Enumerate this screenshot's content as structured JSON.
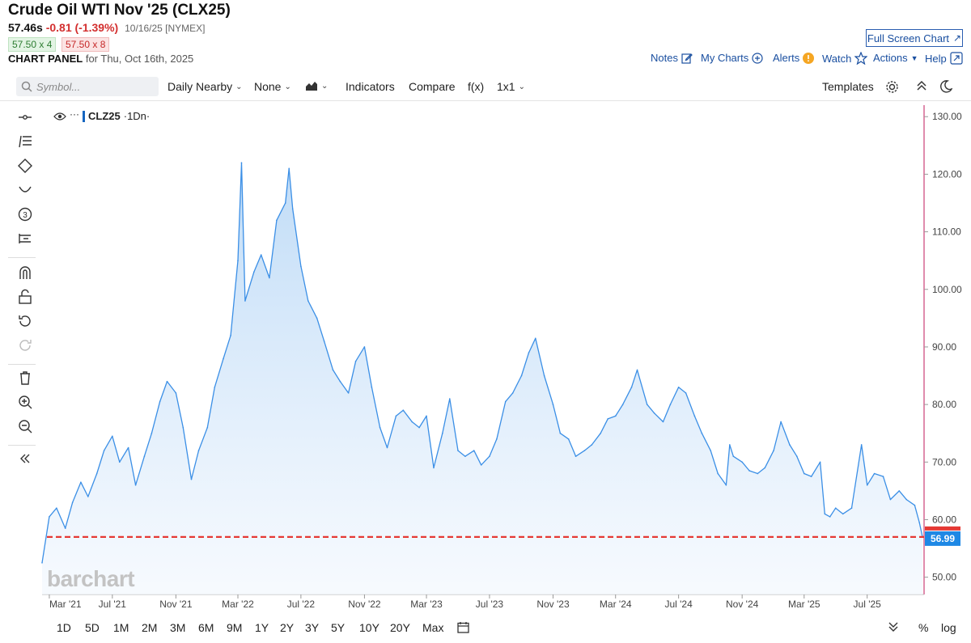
{
  "header": {
    "title": "Crude Oil WTI Nov '25 (CLX25)",
    "price": "57.46s",
    "change": "-0.81 (-1.39%)",
    "date_exchange": "10/16/25 [NYMEX]",
    "bid": "57.50 x 4",
    "ask": "57.50 x 8",
    "panel_label": "CHART PANEL",
    "panel_date": "for Thu, Oct 16th, 2025",
    "fullscreen": "Full Screen Chart",
    "links": {
      "notes": "Notes",
      "mycharts": "My Charts",
      "alerts": "Alerts",
      "watch": "Watch",
      "actions": "Actions",
      "help": "Help"
    }
  },
  "toolbar": {
    "search_placeholder": "Symbol...",
    "period": "Daily Nearby",
    "none": "None",
    "indicators": "Indicators",
    "compare": "Compare",
    "fx": "f(x)",
    "layout": "1x1",
    "templates": "Templates"
  },
  "legend": {
    "symbol": "CLZ25",
    "interval": "·1Dn·"
  },
  "watermark": "barchart",
  "bottom": {
    "ranges": [
      "1D",
      "5D",
      "1M",
      "2M",
      "3M",
      "6M",
      "9M",
      "1Y",
      "2Y",
      "3Y",
      "5Y",
      "10Y",
      "20Y",
      "Max"
    ],
    "percent": "%",
    "log": "log"
  },
  "colors": {
    "line": "#3b8fe6",
    "fill": "#dfeefc",
    "last_price": "#e53935",
    "price_tag": "#1e88e5"
  },
  "chart_data": {
    "type": "area",
    "x_labels": [
      "Mar '21",
      "Jul '21",
      "Nov '21",
      "Mar '22",
      "Jul '22",
      "Nov '22",
      "Mar '23",
      "Jul '23",
      "Nov '23",
      "Mar '24",
      "Jul '24",
      "Nov '24",
      "Mar '25",
      "Jul '25"
    ],
    "y_ticks": [
      "50.00",
      "60.00",
      "70.00",
      "80.00",
      "90.00",
      "100.00",
      "110.00",
      "120.00",
      "130.00"
    ],
    "ylim": [
      47,
      132
    ],
    "last_value": 56.99,
    "last_label": "56.99",
    "series": [
      {
        "dates": [
          "2021-02-15",
          "2021-03-01",
          "2021-03-15",
          "2021-04-01",
          "2021-04-15",
          "2021-05-01",
          "2021-05-15",
          "2021-06-01",
          "2021-06-15",
          "2021-07-01",
          "2021-07-15",
          "2021-08-01",
          "2021-08-15",
          "2021-09-01",
          "2021-09-15",
          "2021-10-01",
          "2021-10-15",
          "2021-11-01",
          "2021-11-15",
          "2021-12-01",
          "2021-12-15",
          "2022-01-01",
          "2022-01-15",
          "2022-02-01",
          "2022-02-15",
          "2022-03-01",
          "2022-03-08",
          "2022-03-15",
          "2022-04-01",
          "2022-04-15",
          "2022-05-01",
          "2022-05-15",
          "2022-06-01",
          "2022-06-08",
          "2022-06-15",
          "2022-07-01",
          "2022-07-15",
          "2022-08-01",
          "2022-08-15",
          "2022-09-01",
          "2022-09-15",
          "2022-10-01",
          "2022-10-15",
          "2022-11-01",
          "2022-11-15",
          "2022-12-01",
          "2022-12-15",
          "2023-01-01",
          "2023-01-15",
          "2023-02-01",
          "2023-02-15",
          "2023-03-01",
          "2023-03-15",
          "2023-04-01",
          "2023-04-15",
          "2023-05-01",
          "2023-05-15",
          "2023-06-01",
          "2023-06-15",
          "2023-07-01",
          "2023-07-15",
          "2023-08-01",
          "2023-08-15",
          "2023-09-01",
          "2023-09-15",
          "2023-09-28",
          "2023-10-15",
          "2023-11-01",
          "2023-11-15",
          "2023-12-01",
          "2023-12-15",
          "2024-01-01",
          "2024-01-15",
          "2024-02-01",
          "2024-02-15",
          "2024-03-01",
          "2024-03-15",
          "2024-04-01",
          "2024-04-12",
          "2024-05-01",
          "2024-05-15",
          "2024-06-01",
          "2024-06-15",
          "2024-07-01",
          "2024-07-15",
          "2024-08-01",
          "2024-08-15",
          "2024-09-01",
          "2024-09-15",
          "2024-10-01",
          "2024-10-08",
          "2024-10-15",
          "2024-11-01",
          "2024-11-15",
          "2024-12-01",
          "2024-12-15",
          "2025-01-01",
          "2025-01-15",
          "2025-02-01",
          "2025-02-15",
          "2025-03-01",
          "2025-03-15",
          "2025-04-01",
          "2025-04-10",
          "2025-04-20",
          "2025-05-01",
          "2025-05-15",
          "2025-06-01",
          "2025-06-20",
          "2025-07-01",
          "2025-07-15",
          "2025-08-01",
          "2025-08-15",
          "2025-09-01",
          "2025-09-15",
          "2025-10-01",
          "2025-10-10",
          "2025-10-16"
        ],
        "values": [
          52.5,
          60.5,
          62.0,
          58.5,
          63.0,
          66.5,
          64.0,
          68.0,
          72.0,
          74.5,
          70.0,
          72.5,
          66.0,
          71.0,
          75.0,
          80.5,
          84.0,
          82.0,
          76.0,
          67.0,
          72.0,
          76.0,
          83.0,
          88.0,
          92.0,
          105.0,
          122.0,
          98.0,
          103.0,
          106.0,
          102.0,
          112.0,
          115.0,
          121.0,
          114.0,
          104.0,
          98.0,
          95.0,
          91.0,
          86.0,
          84.0,
          82.0,
          87.5,
          90.0,
          83.0,
          76.0,
          72.5,
          78.0,
          79.0,
          77.0,
          76.0,
          78.0,
          69.0,
          75.0,
          81.0,
          72.0,
          71.0,
          72.0,
          69.5,
          71.0,
          74.0,
          80.5,
          82.0,
          85.0,
          89.0,
          91.5,
          85.0,
          80.0,
          75.0,
          74.0,
          71.0,
          72.0,
          73.0,
          75.0,
          77.5,
          78.0,
          80.0,
          83.0,
          86.0,
          80.0,
          78.5,
          77.0,
          80.0,
          83.0,
          82.0,
          78.0,
          75.0,
          72.0,
          68.0,
          66.0,
          73.0,
          71.0,
          70.0,
          68.5,
          68.0,
          69.0,
          72.0,
          77.0,
          73.0,
          71.0,
          68.0,
          67.5,
          70.0,
          61.0,
          60.5,
          62.0,
          61.0,
          62.0,
          73.0,
          66.0,
          68.0,
          67.5,
          63.5,
          65.0,
          63.5,
          62.5,
          59.5,
          57.0
        ]
      }
    ]
  }
}
